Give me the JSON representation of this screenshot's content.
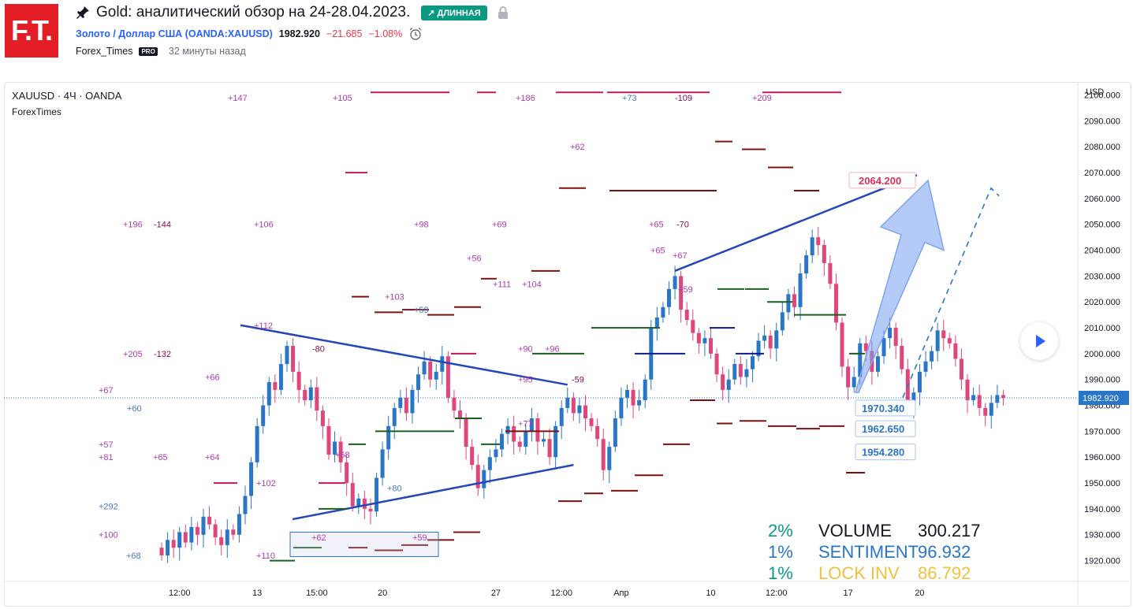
{
  "header": {
    "logo": "F.T.",
    "title": "Gold: аналитический обзор на 24-28.04.2023.",
    "badge": "↗ ДЛИННАЯ",
    "symbol_name": "Золото / Доллар США (OANDA:XAUUSD)",
    "price": "1982.920",
    "change": "−21.685",
    "change_pct": "−1.08%",
    "author": "Forex_Times",
    "pro": "PRO",
    "time_ago": "32 минуты назад"
  },
  "chart": {
    "legend_title": "XAUUSD · 4Ч · OANDA",
    "legend_sub": "ForexTimes",
    "currency": "USD",
    "current_price_label": "1982.920",
    "colors": {
      "up": "#2a76c6",
      "down": "#e0457b",
      "accent": "#2962ff"
    }
  },
  "stats": [
    {
      "pct": "2%",
      "label": "VOLUME",
      "value": "300.217",
      "pct_color": "#089981",
      "label_color": "#131722",
      "value_color": "#131722"
    },
    {
      "pct": "1%",
      "label": "SENTIMENT",
      "value": "96.932",
      "pct_color": "#2a76c6",
      "label_color": "#2a76c6",
      "value_color": "#2a76c6"
    },
    {
      "pct": "1%",
      "label": "LOCK INV",
      "value": "86.792",
      "pct_color": "#089981",
      "label_color": "#f0c040",
      "value_color": "#f0c040"
    }
  ],
  "chart_data": {
    "type": "candlestick",
    "title": "XAUUSD · 4Ч · OANDA",
    "ylabel": "USD",
    "ylim": [
      1915,
      2102
    ],
    "y_ticks": [
      2100,
      2090,
      2080,
      2070,
      2060,
      2050,
      2040,
      2030,
      2020,
      2010,
      2000,
      1990,
      1980,
      1970,
      1960,
      1950,
      1940,
      1930,
      1920
    ],
    "y_tick_labels": [
      "2100.000",
      "2090.000",
      "2080.000",
      "2070.000",
      "2060.000",
      "2050.000",
      "2040.000",
      "2030.000",
      "2020.000",
      "2010.000",
      "2000.000",
      "1990.000",
      "1980.000",
      "1970.000",
      "1960.000",
      "1950.000",
      "1940.000",
      "1930.000",
      "1920.000"
    ],
    "x_tick_labels": [
      "12:00",
      "13",
      "15:00",
      "20",
      "27",
      "12:00",
      "Апр",
      "10",
      "12:00",
      "17",
      "20"
    ],
    "x_tick_index": [
      3,
      16,
      26,
      37,
      56,
      67,
      77,
      92,
      103,
      115,
      127
    ],
    "closes": [
      1922,
      1928,
      1925,
      1931,
      1927,
      1933,
      1930,
      1937,
      1934,
      1929,
      1926,
      1932,
      1930,
      1938,
      1945,
      1958,
      1972,
      1980,
      1989,
      1986,
      1996,
      2003,
      1993,
      1986,
      1982,
      1987,
      1978,
      1972,
      1961,
      1966,
      1958,
      1950,
      1941,
      1944,
      1940,
      1939,
      1952,
      1963,
      1972,
      1979,
      1983,
      1977,
      1986,
      1992,
      1997,
      1990,
      1993,
      1999,
      1983,
      1978,
      1975,
      1964,
      1957,
      1948,
      1955,
      1960,
      1963,
      1969,
      1972,
      1966,
      1964,
      1970,
      1975,
      1966,
      1967,
      1960,
      1972,
      1979,
      1983,
      1977,
      1980,
      1975,
      1972,
      1967,
      1955,
      1964,
      1975,
      1983,
      1986,
      1980,
      1982,
      1990,
      2010,
      2014,
      2018,
      2025,
      2030,
      2017,
      2013,
      2008,
      2004,
      2006,
      2000,
      1992,
      1986,
      1990,
      1996,
      1991,
      1994,
      1999,
      2005,
      2007,
      2002,
      2009,
      2016,
      2023,
      2018,
      2031,
      2038,
      2045,
      2042,
      2035,
      2027,
      2012,
      1995,
      1987,
      1991,
      2004,
      2001,
      1993,
      1999,
      2006,
      2010,
      2003,
      1994,
      1979,
      1985,
      1993,
      1997,
      2001,
      2009,
      2006,
      2004,
      1998,
      1990,
      1982,
      1984,
      1979,
      1976,
      1981,
      1984,
      1982.92
    ],
    "annotations": {
      "resistance_line": [
        [
          2032,
          7
        ],
        [
          2069,
          24
        ]
      ],
      "wedge_upper": [
        [
          2011,
          0
        ],
        [
          1988,
          0
        ]
      ],
      "wedge_lower": [
        [
          1936,
          0
        ],
        [
          1957,
          0
        ]
      ],
      "projected_target": "2064.200",
      "price_labels": [
        "1970.340",
        "1962.650",
        "1954.280"
      ],
      "score_labels": [
        "+147",
        "+105",
        "+186",
        "+73",
        "-109",
        "+209",
        "+62",
        "+196",
        "-144",
        "+106",
        "+98",
        "+69",
        "+65",
        "-70",
        "+56",
        "+111",
        "+104",
        "+103",
        "+59",
        "+112",
        "+90",
        "+96",
        "+205",
        "-132",
        "-80",
        "+66",
        "+67",
        "+95",
        "+60",
        "-59",
        "+77",
        "+57",
        "+81",
        "+80",
        "+68",
        "+65",
        "+64",
        "+102",
        "+292",
        "+100",
        "+62",
        "+59",
        "+110",
        "+68",
        "+67",
        "+65",
        "+59"
      ]
    }
  }
}
